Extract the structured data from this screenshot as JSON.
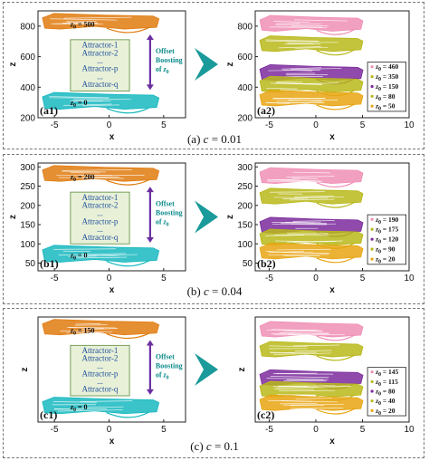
{
  "colors": {
    "orange": "#e07b0f",
    "cyan": "#17b8bf",
    "pink": "#f08fb5",
    "olive": "#b8b81a",
    "purple": "#7b2a9c",
    "gold": "#e8a512",
    "arrow": "#1a9a9a",
    "box_fill": "#e8f1d8",
    "box_stroke": "#5a8a3a",
    "boost_arrow": "#6b2fa0"
  },
  "chart_data": [
    {
      "type": "scatter",
      "panel_tag": "(a1)",
      "caption": "(a) c = 0.01",
      "xlabel": "x",
      "ylabel": "z",
      "xlim": [
        -6.5,
        7
      ],
      "ylim": [
        200,
        900
      ],
      "xticks": [
        -5,
        0,
        5
      ],
      "yticks": [
        200,
        400,
        600,
        800
      ],
      "series": [
        {
          "z0": 500,
          "color": "orange"
        },
        {
          "z0": 0,
          "color": "cyan"
        }
      ],
      "labels": [
        "z0 = 500",
        "z0 = 0"
      ],
      "attractors": [
        "Attractor-1",
        "Attractor-2",
        "...",
        "Attractor-p",
        "...",
        "Attractor-q"
      ],
      "boost_label": [
        "Offset",
        "Boosting",
        "of z0"
      ]
    },
    {
      "type": "scatter",
      "panel_tag": "(a2)",
      "xlabel": "x",
      "ylabel": "z",
      "xlim": [
        -6.5,
        10
      ],
      "ylim": [
        200,
        900
      ],
      "xticks": [
        -5,
        0,
        5,
        10
      ],
      "yticks": [
        200,
        400,
        600,
        800
      ],
      "series": [
        {
          "name": "z0 = 460",
          "color": "pink"
        },
        {
          "name": "z0 = 350",
          "color": "olive"
        },
        {
          "name": "z0 = 150",
          "color": "purple"
        },
        {
          "name": "z0 = 80",
          "color": "olive"
        },
        {
          "name": "z0 = 50",
          "color": "gold"
        }
      ]
    },
    {
      "type": "scatter",
      "panel_tag": "(b1)",
      "caption": "(b) c = 0.04",
      "xlabel": "x",
      "ylabel": "z",
      "xlim": [
        -6.5,
        7
      ],
      "ylim": [
        30,
        310
      ],
      "xticks": [
        -5,
        0,
        5
      ],
      "yticks": [
        50,
        100,
        150,
        200,
        250,
        300
      ],
      "series": [
        {
          "z0": 200,
          "color": "orange"
        },
        {
          "z0": 0,
          "color": "cyan"
        }
      ],
      "labels": [
        "z0 = 200",
        "z0 = 0"
      ],
      "attractors": [
        "Attractor-1",
        "Attractor-2",
        "...",
        "Attractor-p",
        "...",
        "Attractor-q"
      ],
      "boost_label": [
        "Offset",
        "Boosting",
        "of z0"
      ]
    },
    {
      "type": "scatter",
      "panel_tag": "(b2)",
      "xlabel": "x",
      "ylabel": "z",
      "xlim": [
        -6.5,
        10
      ],
      "ylim": [
        30,
        310
      ],
      "xticks": [
        -5,
        0,
        5,
        10
      ],
      "yticks": [
        50,
        100,
        150,
        200,
        250,
        300
      ],
      "series": [
        {
          "name": "z0 = 190",
          "color": "pink"
        },
        {
          "name": "z0 = 175",
          "color": "olive"
        },
        {
          "name": "z0 = 120",
          "color": "purple"
        },
        {
          "name": "z0 = 90",
          "color": "olive"
        },
        {
          "name": "z0 = 20",
          "color": "gold"
        }
      ]
    },
    {
      "type": "scatter",
      "panel_tag": "(c1)",
      "caption": "(c) c = 0.1",
      "xlabel": "x",
      "ylabel": "z",
      "xlim": [
        -6.5,
        7
      ],
      "ylim": [
        -10,
        175
      ],
      "xticks": [
        -5,
        0,
        5
      ],
      "yticks": [],
      "series": [
        {
          "z0": 150,
          "color": "orange"
        },
        {
          "z0": 0,
          "color": "cyan"
        }
      ],
      "labels": [
        "z0 = 150",
        "z0 = 0"
      ],
      "attractors": [
        "Attractor-1",
        "Attractor-2",
        "...",
        "Attractor-p",
        "...",
        "Attractor-q"
      ],
      "boost_label": [
        "Offset",
        "Boosting",
        "of z0"
      ]
    },
    {
      "type": "scatter",
      "panel_tag": "(c2)",
      "xlabel": "x",
      "ylabel": "z",
      "xlim": [
        -6.5,
        10
      ],
      "ylim": [
        -10,
        175
      ],
      "xticks": [
        -5,
        0,
        5,
        10
      ],
      "yticks": [],
      "series": [
        {
          "name": "z0 = 145",
          "color": "pink"
        },
        {
          "name": "z0 = 115",
          "color": "olive"
        },
        {
          "name": "z0 = 80",
          "color": "purple"
        },
        {
          "name": "z0 = 40",
          "color": "olive"
        },
        {
          "name": "z0 = 20",
          "color": "gold"
        }
      ]
    }
  ]
}
